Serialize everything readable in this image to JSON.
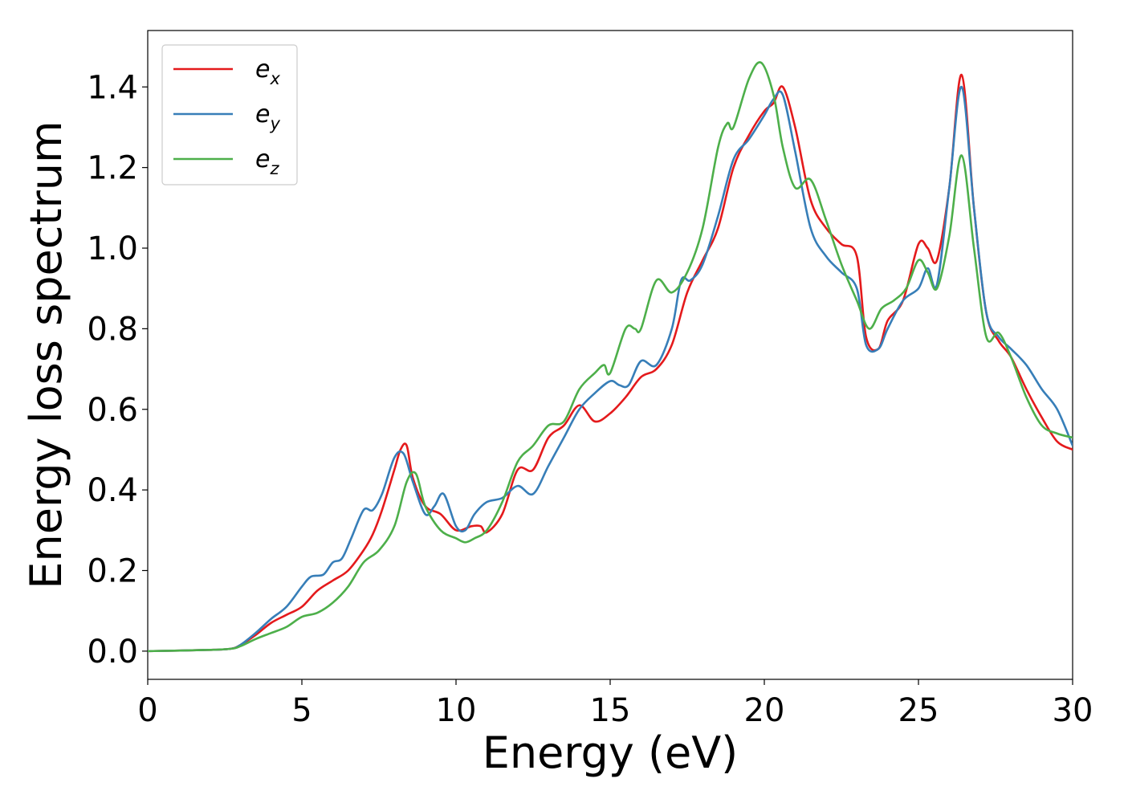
{
  "chart_data": {
    "type": "line",
    "xlabel": "Energy (eV)",
    "ylabel": "Energy loss spectrum",
    "xlim": [
      0,
      30
    ],
    "ylim": [
      -0.07,
      1.54
    ],
    "xticks": [
      0,
      5,
      10,
      15,
      20,
      25,
      30
    ],
    "yticks": [
      0.0,
      0.2,
      0.4,
      0.6,
      0.8,
      1.0,
      1.2,
      1.4
    ],
    "grid": false,
    "legend_position": "top-left",
    "series": [
      {
        "name": "e_x",
        "label_base": "e",
        "label_sub": "x",
        "color": "#e41a1c",
        "x": [
          0,
          2,
          2.7,
          3,
          3.5,
          4,
          4.5,
          5,
          5.5,
          6,
          6.5,
          7,
          7.3,
          7.6,
          8,
          8.2,
          8.4,
          8.6,
          9,
          9.5,
          10,
          10.5,
          10.8,
          11,
          11.5,
          12,
          12.5,
          13,
          13.5,
          14,
          14.5,
          15,
          15.5,
          16,
          16.5,
          17,
          17.5,
          18,
          18.5,
          19,
          19.5,
          20,
          20.3,
          20.6,
          21,
          21.5,
          22,
          22.5,
          23,
          23.3,
          23.7,
          24,
          24.5,
          25,
          25.3,
          25.6,
          26,
          26.4,
          26.8,
          27.2,
          27.6,
          28,
          28.5,
          29,
          29.5,
          30
        ],
        "y": [
          0,
          0.003,
          0.006,
          0.015,
          0.04,
          0.07,
          0.09,
          0.11,
          0.15,
          0.175,
          0.2,
          0.25,
          0.29,
          0.35,
          0.45,
          0.5,
          0.51,
          0.43,
          0.36,
          0.34,
          0.3,
          0.31,
          0.31,
          0.295,
          0.34,
          0.45,
          0.45,
          0.53,
          0.56,
          0.61,
          0.57,
          0.59,
          0.63,
          0.68,
          0.7,
          0.76,
          0.89,
          0.97,
          1.05,
          1.2,
          1.28,
          1.34,
          1.36,
          1.4,
          1.3,
          1.12,
          1.05,
          1.01,
          0.98,
          0.78,
          0.75,
          0.82,
          0.87,
          1.01,
          1.0,
          0.97,
          1.15,
          1.43,
          1.1,
          0.84,
          0.77,
          0.73,
          0.65,
          0.58,
          0.52,
          0.5
        ]
      },
      {
        "name": "e_y",
        "label_base": "e",
        "label_sub": "y",
        "color": "#377eb8",
        "x": [
          0,
          2,
          2.7,
          3,
          3.5,
          4,
          4.5,
          5,
          5.3,
          5.7,
          6,
          6.3,
          6.6,
          7,
          7.3,
          7.6,
          8,
          8.3,
          8.6,
          9,
          9.3,
          9.6,
          10,
          10.3,
          10.6,
          11,
          11.5,
          12,
          12.5,
          13,
          13.5,
          14,
          14.5,
          15,
          15.3,
          15.6,
          16,
          16.5,
          17,
          17.3,
          17.6,
          18,
          18.5,
          19,
          19.5,
          20,
          20.3,
          20.6,
          21,
          21.5,
          22,
          22.5,
          23,
          23.3,
          23.7,
          24,
          24.5,
          25,
          25.3,
          25.6,
          26,
          26.4,
          26.8,
          27.2,
          27.6,
          28,
          28.5,
          29,
          29.5,
          30
        ],
        "y": [
          0,
          0.003,
          0.006,
          0.015,
          0.045,
          0.08,
          0.11,
          0.16,
          0.185,
          0.19,
          0.22,
          0.23,
          0.28,
          0.35,
          0.35,
          0.39,
          0.48,
          0.49,
          0.42,
          0.34,
          0.36,
          0.39,
          0.31,
          0.3,
          0.34,
          0.37,
          0.38,
          0.41,
          0.39,
          0.46,
          0.53,
          0.6,
          0.64,
          0.67,
          0.66,
          0.66,
          0.72,
          0.71,
          0.8,
          0.92,
          0.92,
          0.96,
          1.08,
          1.22,
          1.27,
          1.33,
          1.37,
          1.38,
          1.24,
          1.05,
          0.98,
          0.94,
          0.9,
          0.76,
          0.75,
          0.8,
          0.87,
          0.9,
          0.95,
          0.91,
          1.15,
          1.4,
          1.1,
          0.84,
          0.78,
          0.75,
          0.71,
          0.65,
          0.6,
          0.51
        ]
      },
      {
        "name": "e_z",
        "label_base": "e",
        "label_sub": "z",
        "color": "#4daf4a",
        "x": [
          0,
          2,
          2.7,
          3,
          3.5,
          4,
          4.5,
          5,
          5.5,
          6,
          6.5,
          7,
          7.5,
          8,
          8.4,
          8.7,
          9,
          9.5,
          10,
          10.3,
          10.6,
          11,
          11.5,
          12,
          12.5,
          13,
          13.5,
          14,
          14.5,
          14.8,
          15,
          15.5,
          15.8,
          16,
          16.5,
          17,
          17.5,
          18,
          18.5,
          18.8,
          19,
          19.5,
          19.9,
          20.3,
          20.6,
          21,
          21.5,
          22,
          22.5,
          23,
          23.4,
          23.8,
          24.2,
          24.6,
          25,
          25.3,
          25.6,
          26,
          26.4,
          26.8,
          27.2,
          27.6,
          28,
          28.5,
          29,
          29.5,
          30
        ],
        "y": [
          0,
          0.003,
          0.006,
          0.012,
          0.03,
          0.045,
          0.06,
          0.085,
          0.095,
          0.12,
          0.16,
          0.22,
          0.25,
          0.31,
          0.42,
          0.44,
          0.36,
          0.3,
          0.28,
          0.27,
          0.28,
          0.3,
          0.37,
          0.47,
          0.51,
          0.56,
          0.57,
          0.65,
          0.69,
          0.71,
          0.69,
          0.8,
          0.8,
          0.8,
          0.92,
          0.89,
          0.94,
          1.05,
          1.25,
          1.31,
          1.3,
          1.42,
          1.46,
          1.38,
          1.25,
          1.15,
          1.17,
          1.07,
          0.96,
          0.87,
          0.8,
          0.85,
          0.87,
          0.9,
          0.97,
          0.94,
          0.9,
          1.03,
          1.23,
          1.0,
          0.78,
          0.79,
          0.73,
          0.63,
          0.56,
          0.54,
          0.53
        ]
      }
    ]
  }
}
